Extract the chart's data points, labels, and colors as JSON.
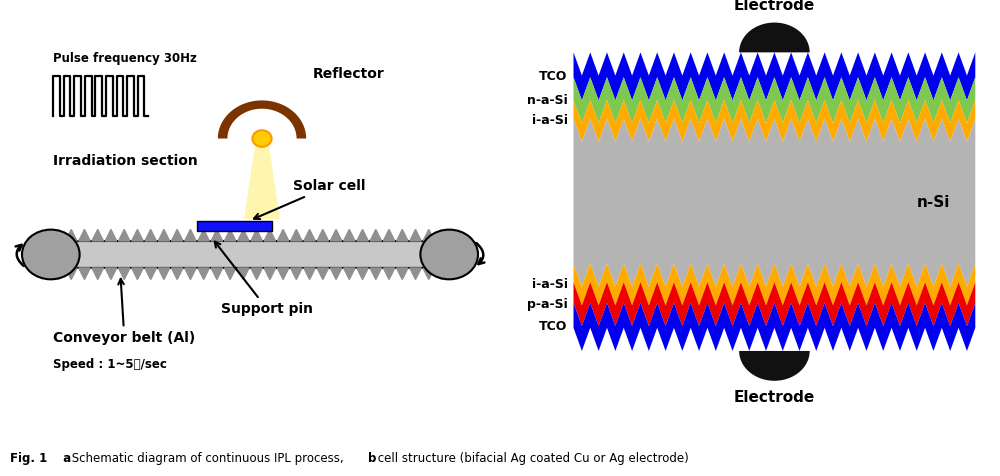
{
  "bg_color": "#ffffff",
  "fig_caption_parts": [
    {
      "text": "Fig. 1",
      "bold": true
    },
    {
      "text": "  ",
      "bold": false
    },
    {
      "text": "a",
      "bold": true
    },
    {
      "text": " Schematic diagram of continuous IPL process, ",
      "bold": false
    },
    {
      "text": "b",
      "bold": true
    },
    {
      "text": " cell structure (bifacial Ag coated Cu or Ag electrode)",
      "bold": false
    }
  ],
  "panel_a": {
    "pulse_label": "Pulse frequency 30Hz",
    "reflector_label": "Reflector",
    "irradiation_label": "Irradiation section",
    "solar_cell_label": "Solar cell",
    "support_pin_label": "Support pin",
    "conveyor_label": "Conveyor belt (Al)",
    "speed_label": "Speed : 1~5㎧/sec",
    "belt_color": "#c8c8c8",
    "roller_color": "#a0a0a0",
    "solar_cell_color": "#1010ff",
    "reflector_color": "#7b3300",
    "lamp_color": "#ffaa00",
    "light_color": "#fffacd",
    "spike_color": "#909090"
  },
  "panel_b": {
    "electrode_label_top": "Electrode",
    "electrode_label_bottom": "Electrode",
    "nsi_label": "n-Si",
    "layer_colors": {
      "TCO": "#0000ee",
      "n_a_Si": "#7ec850",
      "i_a_Si": "#ffaa00",
      "n_Si": "#b4b4b4",
      "p_a_Si": "#ee0000",
      "electrode": "#111111"
    },
    "layer_seq": [
      "TCO",
      "n_a_Si",
      "i_a_Si",
      "n_Si",
      "i_a_Si",
      "p_a_Si",
      "TCO"
    ],
    "layer_labels": [
      "TCO",
      "n-a-Si",
      "i-a-Si",
      "",
      "i-a-Si",
      "p-a-Si",
      "TCO"
    ],
    "layer_heights": [
      0.6,
      0.55,
      0.45,
      3.5,
      0.45,
      0.5,
      0.6
    ]
  }
}
